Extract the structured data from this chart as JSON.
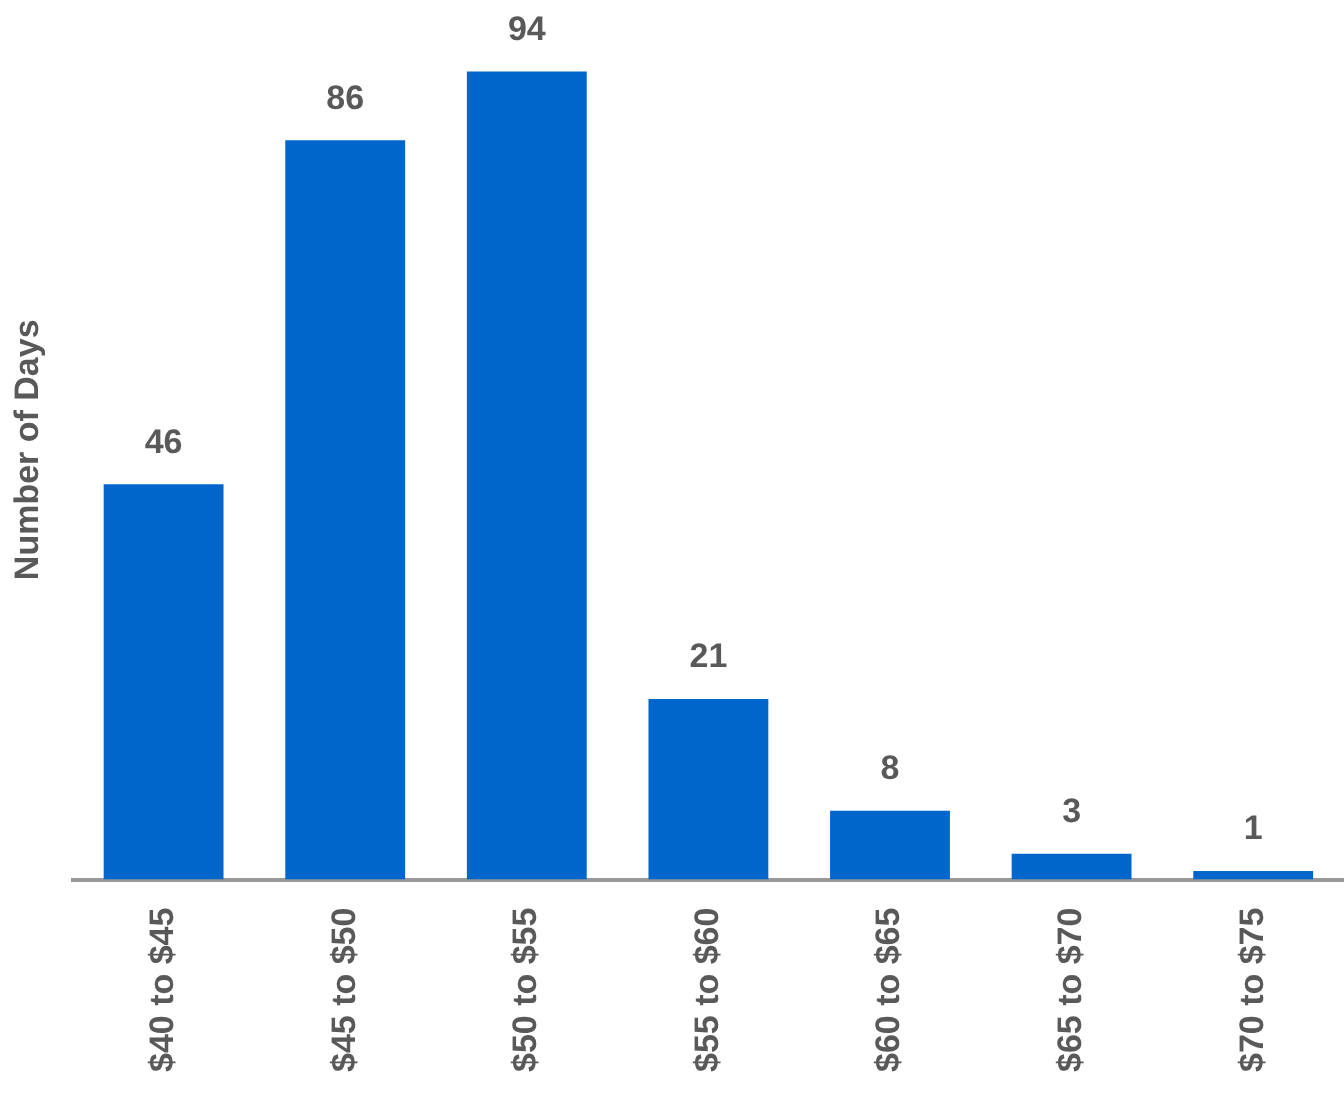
{
  "chart_data": {
    "type": "bar",
    "ylabel": "Number of Days",
    "categories": [
      "$40 to $45",
      "$45 to $50",
      "$50 to $55",
      "$55 to $60",
      "$60 to $65",
      "$65 to $70",
      "$70 to $75"
    ],
    "values": [
      46,
      86,
      94,
      21,
      8,
      3,
      1
    ],
    "color": "#0066cc",
    "data_labels": true,
    "grid": false,
    "legend": false,
    "tick_labels": "x"
  }
}
